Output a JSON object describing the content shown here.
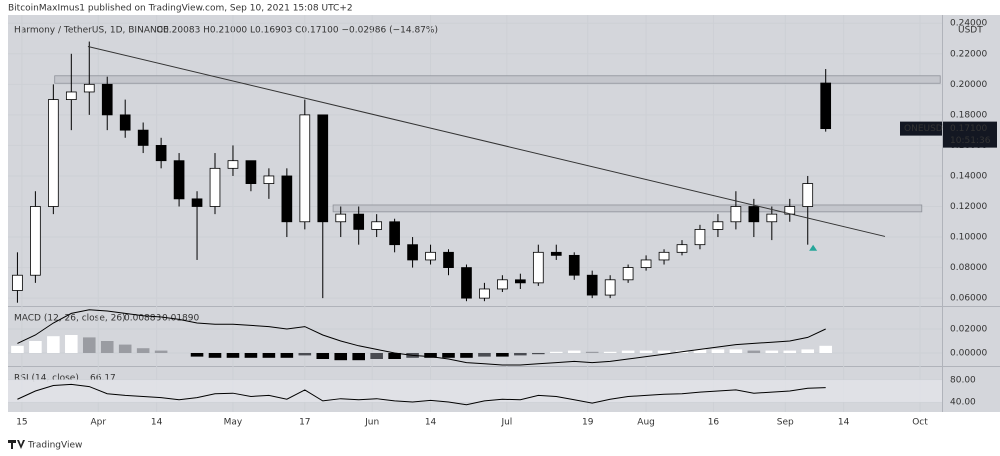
{
  "header": "BitcoinMaxImus1 published on TradingView.com, Sep 10, 2021 15:08 UTC+2",
  "footer": "TradingView",
  "chart_data": [
    {
      "type": "candlestick",
      "legend": "Harmony / TetherUS, 1D, BINANCE",
      "ohlc_text": "O0.20083 H0.21000 L0.16903 C0.17100 −0.02986 (−14.87%)",
      "axis_unit": "USDT",
      "up_color": "#ffffff",
      "down_color": "#000000",
      "x": [
        -1,
        3,
        7,
        11,
        15,
        19,
        23,
        27,
        31,
        35,
        39,
        43,
        47,
        51,
        55,
        59,
        63,
        67,
        71,
        75,
        79,
        83,
        87,
        91,
        95,
        99,
        103,
        107,
        111,
        115,
        119,
        123,
        127,
        131,
        135,
        139,
        143,
        147,
        151,
        155,
        159,
        163,
        167,
        171,
        175,
        179
      ],
      "open": [
        0.065,
        0.075,
        0.12,
        0.19,
        0.195,
        0.2,
        0.18,
        0.17,
        0.16,
        0.15,
        0.125,
        0.12,
        0.145,
        0.15,
        0.135,
        0.14,
        0.11,
        0.18,
        0.11,
        0.115,
        0.105,
        0.11,
        0.095,
        0.085,
        0.09,
        0.08,
        0.06,
        0.066,
        0.072,
        0.07,
        0.09,
        0.088,
        0.075,
        0.062,
        0.072,
        0.08,
        0.085,
        0.09,
        0.095,
        0.105,
        0.11,
        0.12,
        0.11,
        0.115,
        0.12,
        0.20083
      ],
      "high": [
        0.09,
        0.13,
        0.2,
        0.22,
        0.228,
        0.205,
        0.19,
        0.175,
        0.165,
        0.155,
        0.13,
        0.155,
        0.16,
        0.15,
        0.145,
        0.145,
        0.19,
        0.18,
        0.12,
        0.12,
        0.115,
        0.112,
        0.1,
        0.095,
        0.092,
        0.082,
        0.07,
        0.075,
        0.076,
        0.095,
        0.095,
        0.09,
        0.078,
        0.075,
        0.082,
        0.088,
        0.092,
        0.098,
        0.108,
        0.115,
        0.13,
        0.125,
        0.12,
        0.125,
        0.14,
        0.21
      ],
      "low": [
        0.057,
        0.07,
        0.115,
        0.17,
        0.18,
        0.17,
        0.165,
        0.155,
        0.145,
        0.12,
        0.085,
        0.115,
        0.14,
        0.13,
        0.125,
        0.1,
        0.105,
        0.06,
        0.1,
        0.095,
        0.1,
        0.09,
        0.08,
        0.082,
        0.075,
        0.058,
        0.058,
        0.064,
        0.066,
        0.068,
        0.085,
        0.072,
        0.06,
        0.06,
        0.07,
        0.078,
        0.082,
        0.088,
        0.092,
        0.1,
        0.105,
        0.1,
        0.098,
        0.11,
        0.095,
        0.16903
      ],
      "close": [
        0.075,
        0.12,
        0.19,
        0.195,
        0.2,
        0.18,
        0.17,
        0.16,
        0.15,
        0.125,
        0.12,
        0.145,
        0.15,
        0.135,
        0.14,
        0.11,
        0.18,
        0.11,
        0.115,
        0.105,
        0.11,
        0.095,
        0.085,
        0.09,
        0.08,
        0.06,
        0.066,
        0.072,
        0.07,
        0.09,
        0.088,
        0.075,
        0.062,
        0.072,
        0.08,
        0.085,
        0.09,
        0.095,
        0.105,
        0.11,
        0.12,
        0.11,
        0.115,
        0.12,
        0.135,
        0.171
      ],
      "xlim": [
        -3.1,
        204.9
      ],
      "ylim": [
        0.0555,
        0.2454
      ],
      "yticks": [
        {
          "value": 0.24,
          "label": "0.24000"
        },
        {
          "value": 0.22,
          "label": "0.22000"
        },
        {
          "value": 0.2,
          "label": "0.20000"
        },
        {
          "value": 0.18,
          "label": "0.18000"
        },
        {
          "value": 0.16,
          "label": "0.16000"
        },
        {
          "value": 0.14,
          "label": "0.14000"
        },
        {
          "value": 0.12,
          "label": "0.12000"
        },
        {
          "value": 0.1,
          "label": "0.10000"
        },
        {
          "value": 0.08,
          "label": "0.08000"
        },
        {
          "value": 0.06,
          "label": "0.06000"
        }
      ],
      "xticks": [
        {
          "value": 0,
          "label": "15"
        },
        {
          "value": 17,
          "label": "Apr"
        },
        {
          "value": 30,
          "label": "14"
        },
        {
          "value": 47,
          "label": "May"
        },
        {
          "value": 63,
          "label": "17"
        },
        {
          "value": 78,
          "label": "Jun"
        },
        {
          "value": 91,
          "label": "14"
        },
        {
          "value": 108,
          "label": "Jul"
        },
        {
          "value": 126,
          "label": "19"
        },
        {
          "value": 139,
          "label": "Aug"
        },
        {
          "value": 154,
          "label": "16"
        },
        {
          "value": 170,
          "label": "Sep"
        },
        {
          "value": 183,
          "label": "14"
        },
        {
          "value": 200,
          "label": "Oct"
        }
      ],
      "price_tag": {
        "symbol": "ONEUSDT",
        "value": 0.171,
        "label": "0.17100",
        "countdown": "10:51:36"
      },
      "zones": [
        {
          "x0": 7.3,
          "x1": 204.5,
          "low": 0.2007,
          "high": 0.2056
        },
        {
          "x0": 69.3,
          "x1": 200.4,
          "low": 0.1165,
          "high": 0.121
        }
      ],
      "trendline": {
        "x": [
          14.7,
          192.2
        ],
        "y": [
          0.2248,
          0.1004
        ]
      },
      "marker": {
        "x": 176.2,
        "y": 0.093,
        "color": "#26a69a"
      }
    },
    {
      "type": "macd",
      "title": "MACD (12, 26, close, 26)",
      "readouts": [
        "0.00883",
        "0.01890"
      ],
      "macd": [
        0.008,
        0.015,
        0.025,
        0.033,
        0.036,
        0.035,
        0.033,
        0.031,
        0.03,
        0.028,
        0.025,
        0.024,
        0.024,
        0.023,
        0.022,
        0.02,
        0.022,
        0.015,
        0.01,
        0.006,
        0.003,
        0,
        -0.002,
        -0.003,
        -0.005,
        -0.008,
        -0.009,
        -0.01,
        -0.01,
        -0.009,
        -0.008,
        -0.007,
        -0.008,
        -0.007,
        -0.005,
        -0.003,
        -0.001,
        0.001,
        0.003,
        0.005,
        0.007,
        0.008,
        0.009,
        0.01,
        0.013,
        0.02
      ],
      "histogram": [
        0.006,
        0.01,
        0.014,
        0.015,
        0.013,
        0.01,
        0.007,
        0.004,
        0.002,
        0,
        -0.003,
        -0.004,
        -0.004,
        -0.004,
        -0.004,
        -0.004,
        -0.002,
        -0.005,
        -0.006,
        -0.006,
        -0.005,
        -0.005,
        -0.004,
        -0.004,
        -0.004,
        -0.004,
        -0.003,
        -0.003,
        -0.002,
        -0.001,
        0.001,
        0.002,
        0.001,
        0.001,
        0.002,
        0.002,
        0.002,
        0.002,
        0.003,
        0.003,
        0.003,
        0.002,
        0.002,
        0.002,
        0.003,
        0.006
      ],
      "ylim": [
        -0.01,
        0.0375
      ],
      "yticks": [
        {
          "value": 0.02,
          "label": "0.02000"
        },
        {
          "value": 0,
          "label": "0.00000"
        }
      ]
    },
    {
      "type": "rsi",
      "title": "RSI (14, close)",
      "readout": "66.17",
      "values": [
        45,
        60,
        70,
        72,
        68,
        55,
        52,
        50,
        48,
        44,
        48,
        55,
        56,
        50,
        52,
        45,
        62,
        42,
        46,
        44,
        46,
        42,
        40,
        43,
        40,
        35,
        42,
        45,
        44,
        52,
        50,
        44,
        38,
        45,
        50,
        52,
        54,
        55,
        58,
        60,
        62,
        56,
        58,
        60,
        65,
        66.17
      ],
      "ylim": [
        21.8,
        101.8
      ],
      "yticks": [
        {
          "value": 80,
          "label": "80.00"
        },
        {
          "value": 40,
          "label": "40.00"
        }
      ]
    }
  ]
}
